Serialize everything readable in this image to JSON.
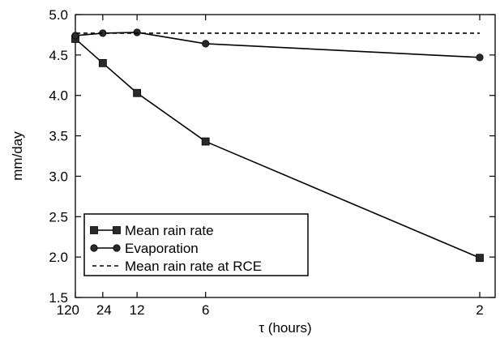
{
  "chart_data": {
    "type": "line",
    "title": "",
    "xlabel": "τ (hours)",
    "ylabel": "mm/day",
    "x_ticks": [
      {
        "label": "120",
        "value": 120
      },
      {
        "label": "24",
        "value": 24
      },
      {
        "label": "12",
        "value": 12
      },
      {
        "label": "6",
        "value": 6
      },
      {
        "label": "2",
        "value": 2
      }
    ],
    "x_scale": "reciprocal",
    "ylim": [
      1.5,
      5.0
    ],
    "y_ticks": [
      "1.5",
      "2.0",
      "2.5",
      "3.0",
      "3.5",
      "4.0",
      "4.5",
      "5.0"
    ],
    "grid": false,
    "legend_position": "bottom-left",
    "series": [
      {
        "name": "Mean rain rate",
        "marker": "square",
        "line": "solid",
        "x": [
          120,
          24,
          12,
          6,
          2
        ],
        "y": [
          4.7,
          4.4,
          4.03,
          3.43,
          1.99
        ]
      },
      {
        "name": "Evaporation",
        "marker": "circle",
        "line": "solid",
        "x": [
          120,
          24,
          12,
          6,
          2
        ],
        "y": [
          4.74,
          4.77,
          4.78,
          4.64,
          4.47
        ]
      },
      {
        "name": "Mean rain rate at RCE",
        "marker": "none",
        "line": "dashed",
        "x": [
          120,
          2
        ],
        "y": [
          4.77,
          4.77
        ]
      }
    ],
    "colors": {
      "line": "#000000",
      "marker": "#2a2a2a",
      "background": "#ffffff"
    }
  }
}
